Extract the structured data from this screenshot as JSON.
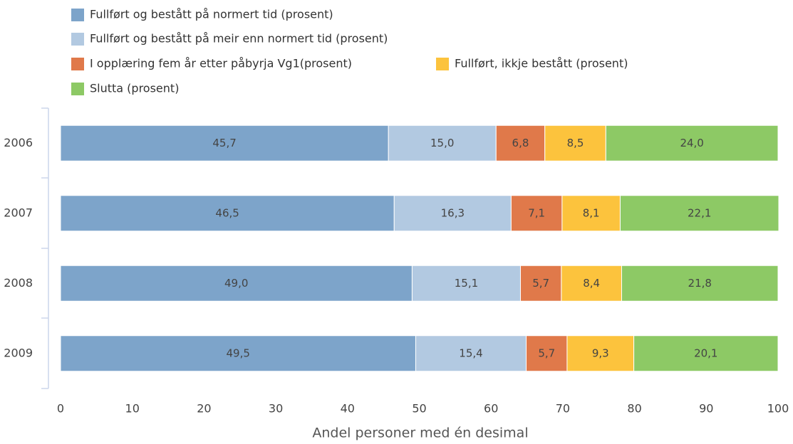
{
  "chart_data": {
    "type": "stacked-barh",
    "categories": [
      "2006",
      "2007",
      "2008",
      "2009"
    ],
    "series": [
      {
        "name": "Fullført og bestått på normert tid (prosent)",
        "color": "#7da4ca",
        "values": [
          45.7,
          46.5,
          49.0,
          49.5
        ],
        "value_labels": [
          "45,7",
          "46,5",
          "49,0",
          "49,5"
        ]
      },
      {
        "name": "Fullført og bestått på meir enn normert tid (prosent)",
        "color": "#b2c9e1",
        "values": [
          15.0,
          16.3,
          15.1,
          15.4
        ],
        "value_labels": [
          "15,0",
          "16,3",
          "15,1",
          "15,4"
        ]
      },
      {
        "name": "I opplæring fem år etter påbyrja Vg1(prosent)",
        "color": "#e0794a",
        "values": [
          6.8,
          7.1,
          5.7,
          5.7
        ],
        "value_labels": [
          "6,8",
          "7,1",
          "5,7",
          "5,7"
        ]
      },
      {
        "name": "Fullført, ikkje bestått (prosent)",
        "color": "#fcc33d",
        "values": [
          8.5,
          8.1,
          8.4,
          9.3
        ],
        "value_labels": [
          "8,5",
          "8,1",
          "8,4",
          "9,3"
        ]
      },
      {
        "name": "Slutta (prosent)",
        "color": "#8dc965",
        "values": [
          24.0,
          22.1,
          21.8,
          20.1
        ],
        "value_labels": [
          "24,0",
          "22,1",
          "21,8",
          "20,1"
        ]
      }
    ],
    "xlabel": "Andel personer med én desimal",
    "xlim": [
      0,
      100
    ],
    "xticks": [
      0,
      10,
      20,
      30,
      40,
      50,
      60,
      70,
      80,
      90,
      100
    ]
  }
}
